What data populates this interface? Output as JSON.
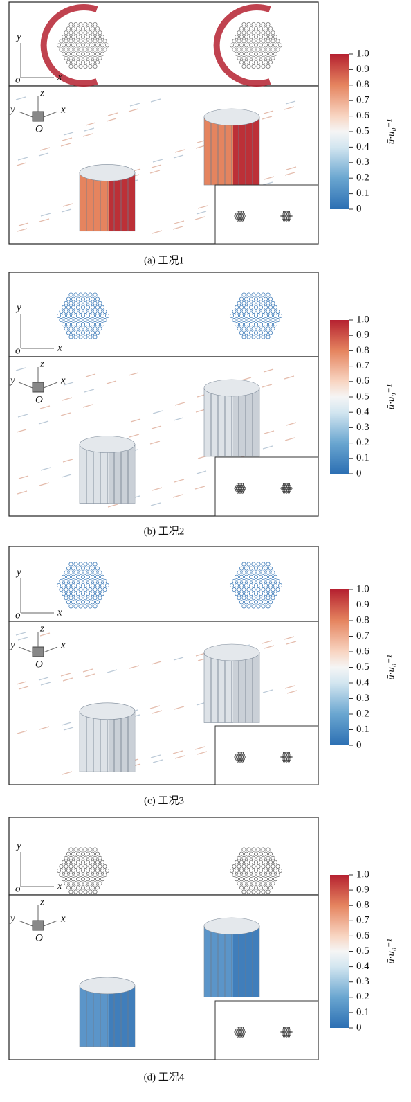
{
  "panels": [
    {
      "caption": "(a) 工况1",
      "top_axis_labels": {
        "y": "y",
        "x": "x",
        "origin": "o"
      },
      "bottom_axis_labels": {
        "z": "z",
        "y": "y",
        "x": "x",
        "origin": "O"
      },
      "colorbar": {
        "label": "ū·u₀⁻¹",
        "ticks": [
          0,
          0.1,
          0.2,
          0.3,
          0.4,
          0.5,
          0.6,
          0.7,
          0.8,
          0.9,
          {
            "value": 1,
            "label": "1.0"
          }
        ]
      }
    },
    {
      "caption": "(b) 工况2",
      "top_axis_labels": {
        "y": "y",
        "x": "x",
        "origin": "o"
      },
      "bottom_axis_labels": {
        "z": "z",
        "y": "y",
        "x": "x",
        "origin": "O"
      },
      "colorbar": {
        "label": "ū·u₀⁻¹",
        "ticks": [
          0,
          0.1,
          0.2,
          0.3,
          0.4,
          0.5,
          0.6,
          0.7,
          0.8,
          0.9,
          {
            "value": 1,
            "label": "1.0"
          }
        ]
      }
    },
    {
      "caption": "(c) 工况3",
      "top_axis_labels": {
        "y": "y",
        "x": "x",
        "origin": "o"
      },
      "bottom_axis_labels": {
        "z": "z",
        "y": "y",
        "x": "x",
        "origin": "O"
      },
      "colorbar": {
        "label": "ū·u₀⁻¹",
        "ticks": [
          0,
          0.1,
          0.2,
          0.3,
          0.4,
          0.5,
          0.6,
          0.7,
          0.8,
          0.9,
          {
            "value": 1,
            "label": "1.0"
          }
        ]
      }
    },
    {
      "caption": "(d) 工况4",
      "top_axis_labels": {
        "y": "y",
        "x": "x",
        "origin": "o"
      },
      "bottom_axis_labels": {
        "z": "z",
        "y": "y",
        "x": "x",
        "origin": "O"
      },
      "colorbar": {
        "label": "ū·u₀⁻¹",
        "ticks": [
          0,
          0.1,
          0.2,
          0.3,
          0.4,
          0.5,
          0.6,
          0.7,
          0.8,
          0.9,
          {
            "value": 1,
            "label": "1.0"
          }
        ]
      }
    }
  ]
}
